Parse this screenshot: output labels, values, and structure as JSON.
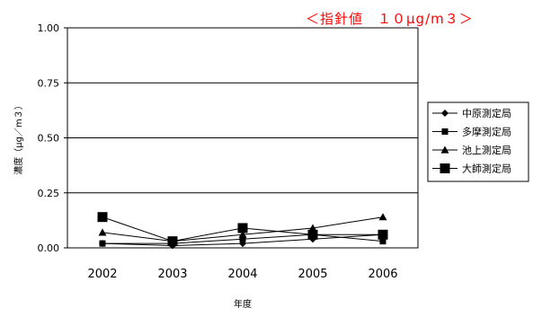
{
  "annotation": {
    "text": "＜指針値　１０μg/m３＞",
    "color": "#ff0000"
  },
  "chart_data": {
    "type": "line",
    "xlabel": "年度",
    "ylabel": "濃度（μg／m３）",
    "categories": [
      "2002",
      "2003",
      "2004",
      "2005",
      "2006"
    ],
    "ylim": [
      0,
      1
    ],
    "yticks": [
      "0.00",
      "0.25",
      "0.50",
      "0.75",
      "1.00"
    ],
    "grid": true,
    "legend_position": "right",
    "series": [
      {
        "name": "中原測定局",
        "marker": "diamond",
        "values": [
          0.02,
          0.01,
          0.02,
          0.04,
          0.06
        ]
      },
      {
        "name": "多摩測定局",
        "marker": "square-small",
        "values": [
          0.02,
          0.02,
          0.04,
          0.06,
          0.03
        ]
      },
      {
        "name": "池上測定局",
        "marker": "triangle",
        "values": [
          0.07,
          0.03,
          0.06,
          0.09,
          0.14
        ]
      },
      {
        "name": "大師測定局",
        "marker": "square-large",
        "values": [
          0.14,
          0.03,
          0.09,
          0.06,
          0.06
        ]
      }
    ]
  }
}
